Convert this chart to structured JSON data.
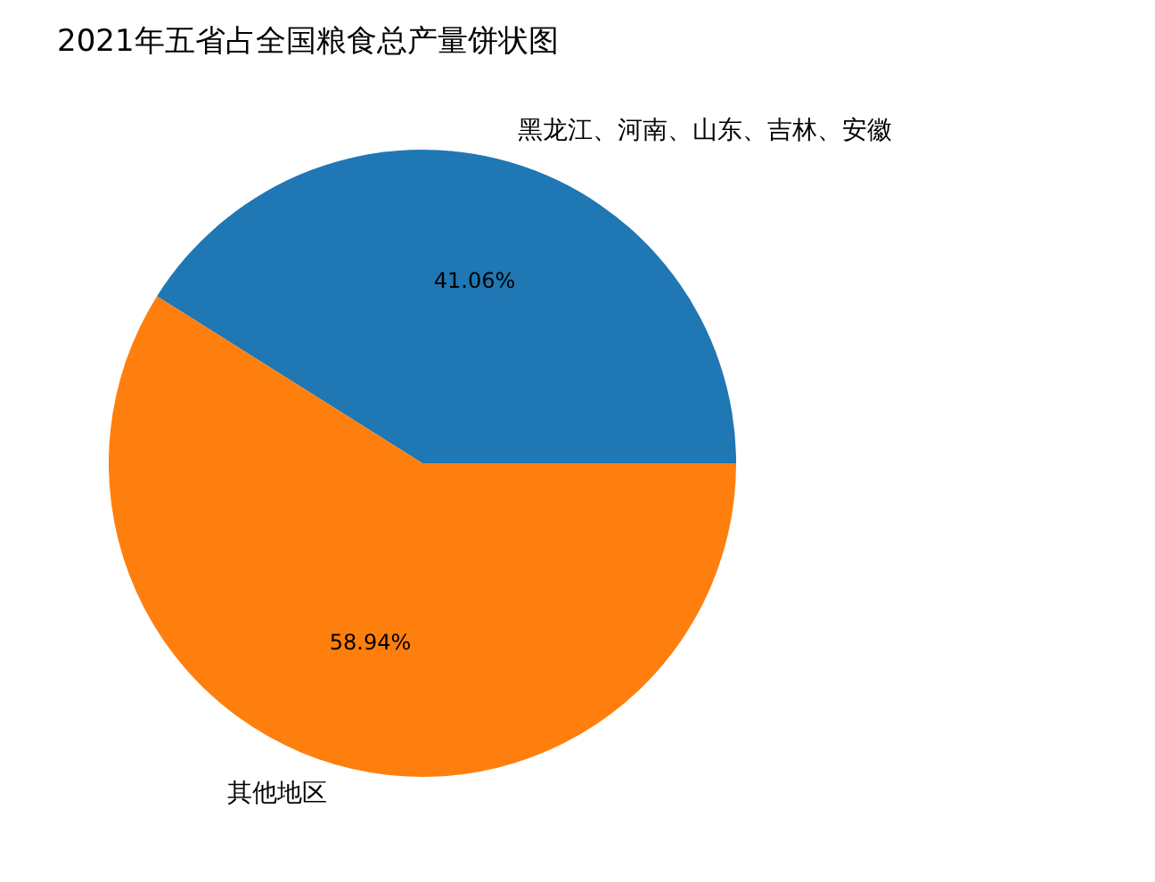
{
  "chart_data": {
    "type": "pie",
    "title": "2021年五省占全国粮食总产量饼状图",
    "categories": [
      "黑龙江、河南、山东、吉林、安徽",
      "其他地区"
    ],
    "values": [
      41.06,
      58.94
    ],
    "colors": [
      "#1f77b4",
      "#ff7f0e"
    ],
    "value_labels": [
      "41.06%",
      "58.94%"
    ],
    "legend": false
  }
}
